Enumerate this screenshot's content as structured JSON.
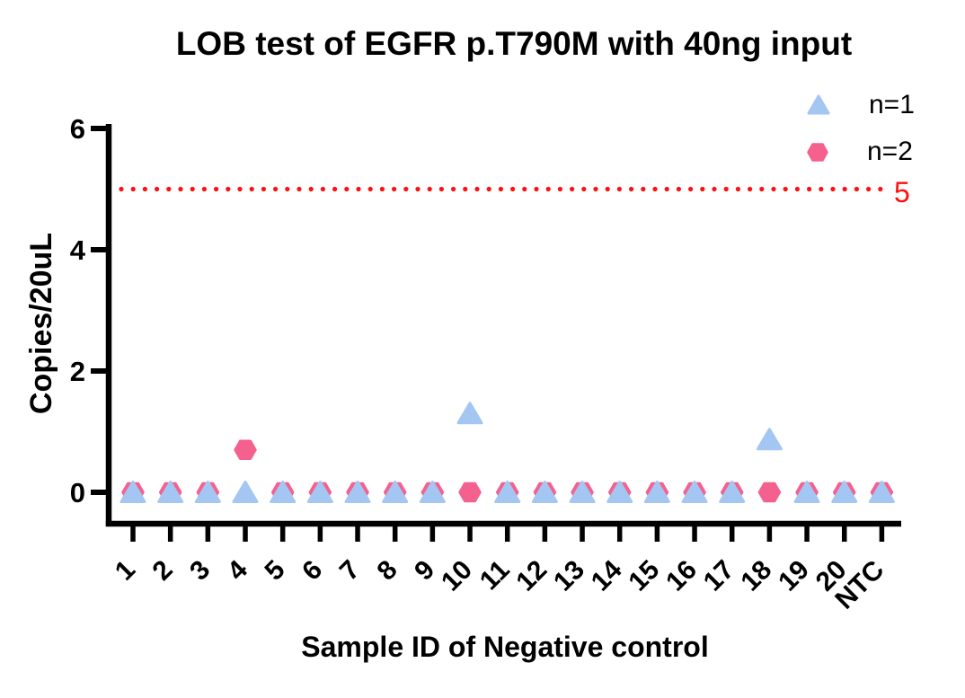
{
  "window": {
    "background": "#ffffff"
  },
  "chart_data": {
    "type": "scatter",
    "title": "LOB test of EGFR p.T790M with 40ng input",
    "xlabel": "Sample ID of Negative control",
    "ylabel": "Copies/20uL",
    "categories": [
      "1",
      "2",
      "3",
      "4",
      "5",
      "6",
      "7",
      "8",
      "9",
      "10",
      "11",
      "12",
      "13",
      "14",
      "15",
      "16",
      "17",
      "18",
      "19",
      "20",
      "NTC"
    ],
    "series": [
      {
        "name": "n=1",
        "marker": "triangle",
        "color": "#a3c6f3",
        "values": [
          0,
          0,
          0,
          0,
          0,
          0,
          0,
          0,
          0,
          1.3,
          0,
          0,
          0,
          0,
          0,
          0,
          0,
          0.87,
          0,
          0,
          0
        ]
      },
      {
        "name": "n=2",
        "marker": "hexagon",
        "color": "#f4618e",
        "values": [
          0,
          0,
          0,
          0.7,
          0,
          0,
          0,
          0,
          0,
          0,
          0,
          0,
          0,
          0,
          0,
          0,
          0,
          0,
          0,
          0,
          0
        ]
      }
    ],
    "ylim": [
      0,
      6
    ],
    "yticks": [
      0,
      2,
      4,
      6
    ],
    "threshold": {
      "value": 5,
      "label": "5",
      "color": "#ff0f0f",
      "style": "dotted"
    },
    "legend": {
      "position": "top-right"
    },
    "grid": false,
    "axis_color": "#000000",
    "text_color": "#000000"
  }
}
